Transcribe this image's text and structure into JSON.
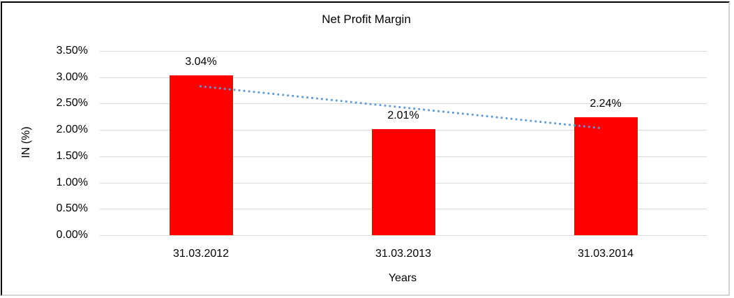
{
  "chart_data": {
    "type": "bar",
    "title": "Net Profit Margin",
    "xlabel": "Years",
    "ylabel": "IN (%)",
    "categories": [
      "31.03.2012",
      "31.03.2013",
      "31.03.2014"
    ],
    "values": [
      3.04,
      2.01,
      2.24
    ],
    "data_labels": [
      "3.04%",
      "2.01%",
      "2.24%"
    ],
    "bar_color": "#ff0000",
    "ylim": [
      0,
      3.5
    ],
    "ytick_step": 0.5,
    "ytick_labels": [
      "0.00%",
      "0.50%",
      "1.00%",
      "1.50%",
      "2.00%",
      "2.50%",
      "3.00%",
      "3.50%"
    ],
    "grid": true,
    "gridline_color": "#d9d9d9",
    "legend": "none",
    "trendline": {
      "type": "linear",
      "style": "dotted",
      "color": "#5b9bd5",
      "start_value": 2.83,
      "end_value": 2.03
    }
  }
}
